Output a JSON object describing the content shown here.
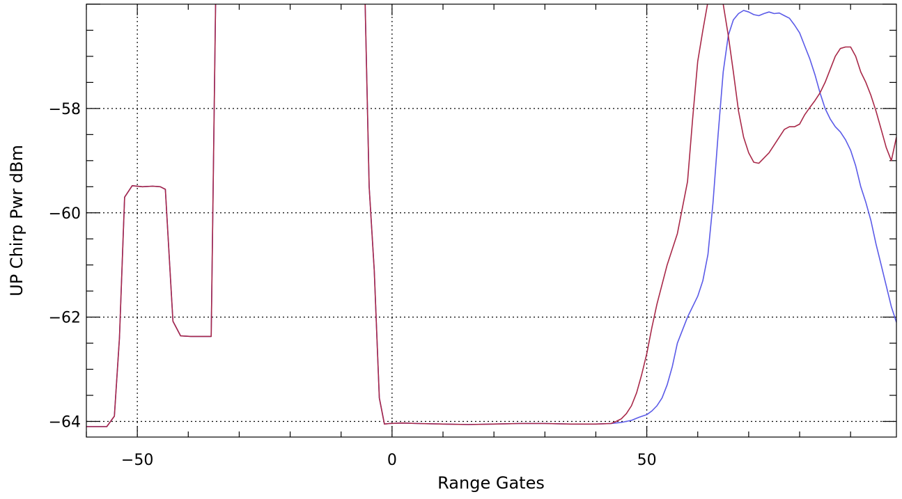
{
  "chart_data": {
    "type": "line",
    "title": "",
    "xlabel": "Range Gates",
    "ylabel": "UP Chirp Pwr dBm",
    "xlim": [
      -60,
      99
    ],
    "ylim": [
      -64.3,
      -56.0
    ],
    "grid": true,
    "x_ticks": [
      -50,
      0,
      50
    ],
    "x_tick_labels": [
      "−50",
      "0",
      "50"
    ],
    "y_ticks": [
      -64,
      -62,
      -60,
      -58
    ],
    "y_tick_labels": [
      "−64",
      "−62",
      "−60",
      "−58"
    ],
    "series": [
      {
        "color": "#5a5ae8",
        "x": [
          -60,
          -56,
          -54.5,
          -53.5,
          -52.5,
          -51,
          -49,
          -47,
          -45.5,
          -44.5,
          -43,
          -41.5,
          -39.5,
          -37.5,
          -35.5,
          -34.5,
          -5.5,
          -4.5,
          -3.5,
          -2.5,
          -1.5,
          -0.5,
          2,
          5,
          10,
          15,
          20,
          25,
          30,
          35,
          40,
          43,
          45,
          47,
          48.5,
          50,
          51,
          52,
          53,
          54,
          55,
          56,
          58,
          60,
          61,
          62,
          63,
          64,
          65,
          66,
          67,
          68,
          69,
          70,
          71,
          72,
          73,
          74,
          75,
          76,
          77,
          78,
          79,
          80,
          81,
          82,
          83,
          84,
          85,
          86,
          87,
          88,
          89,
          90,
          91,
          92,
          93,
          94,
          95,
          96,
          97,
          98,
          99
        ],
        "y": [
          -64.1,
          -64.1,
          -63.9,
          -62.4,
          -59.7,
          -59.48,
          -59.5,
          -59.49,
          -59.5,
          -59.55,
          -62.08,
          -62.36,
          -62.37,
          -62.37,
          -62.37,
          -55.0,
          -55.0,
          -59.5,
          -61.1,
          -63.55,
          -64.05,
          -64.04,
          -64.03,
          -64.04,
          -64.05,
          -64.06,
          -64.05,
          -64.04,
          -64.04,
          -64.05,
          -64.05,
          -64.04,
          -64.02,
          -63.98,
          -63.92,
          -63.87,
          -63.8,
          -63.7,
          -63.55,
          -63.3,
          -62.95,
          -62.5,
          -62.0,
          -61.6,
          -61.3,
          -60.8,
          -59.8,
          -58.5,
          -57.3,
          -56.6,
          -56.3,
          -56.18,
          -56.12,
          -56.15,
          -56.2,
          -56.22,
          -56.18,
          -56.15,
          -56.18,
          -56.17,
          -56.22,
          -56.27,
          -56.4,
          -56.55,
          -56.8,
          -57.05,
          -57.35,
          -57.7,
          -58.0,
          -58.2,
          -58.35,
          -58.45,
          -58.6,
          -58.8,
          -59.1,
          -59.5,
          -59.8,
          -60.15,
          -60.6,
          -61.0,
          -61.4,
          -61.8,
          -62.1
        ]
      },
      {
        "color": "#a82848",
        "x": [
          -60,
          -56,
          -54.5,
          -53.5,
          -52.5,
          -51,
          -49,
          -47,
          -45.5,
          -44.5,
          -43,
          -41.5,
          -39.5,
          -37.5,
          -35.5,
          -34.5,
          -5.5,
          -4.5,
          -3.5,
          -2.5,
          -1.5,
          -0.5,
          2,
          5,
          10,
          15,
          20,
          25,
          30,
          35,
          40,
          43,
          44,
          45,
          46,
          47,
          48,
          49,
          50,
          51,
          52,
          54,
          56,
          58,
          59,
          60,
          61,
          62,
          63,
          64,
          65,
          66,
          67,
          68,
          69,
          70,
          71,
          72,
          73,
          74,
          75,
          76,
          77,
          78,
          79,
          80,
          81,
          82,
          83,
          84,
          85,
          86,
          87,
          88,
          89,
          90,
          91,
          92,
          93,
          94,
          95,
          96,
          97,
          98,
          99
        ],
        "y": [
          -64.1,
          -64.1,
          -63.9,
          -62.4,
          -59.7,
          -59.48,
          -59.5,
          -59.49,
          -59.5,
          -59.55,
          -62.08,
          -62.36,
          -62.37,
          -62.37,
          -62.37,
          -55.0,
          -55.0,
          -59.5,
          -61.1,
          -63.55,
          -64.05,
          -64.04,
          -64.03,
          -64.04,
          -64.05,
          -64.06,
          -64.05,
          -64.04,
          -64.04,
          -64.05,
          -64.05,
          -64.04,
          -64.0,
          -63.95,
          -63.85,
          -63.7,
          -63.45,
          -63.1,
          -62.7,
          -62.2,
          -61.75,
          -61.0,
          -60.4,
          -59.4,
          -58.2,
          -57.1,
          -56.5,
          -55.95,
          -55.8,
          -55.8,
          -56.0,
          -56.6,
          -57.3,
          -58.05,
          -58.55,
          -58.85,
          -59.03,
          -59.05,
          -58.95,
          -58.85,
          -58.7,
          -58.55,
          -58.4,
          -58.35,
          -58.35,
          -58.3,
          -58.12,
          -57.98,
          -57.85,
          -57.7,
          -57.5,
          -57.25,
          -57.0,
          -56.85,
          -56.82,
          -56.82,
          -57.0,
          -57.3,
          -57.5,
          -57.75,
          -58.05,
          -58.4,
          -58.75,
          -59.0,
          -58.55
        ]
      }
    ]
  }
}
